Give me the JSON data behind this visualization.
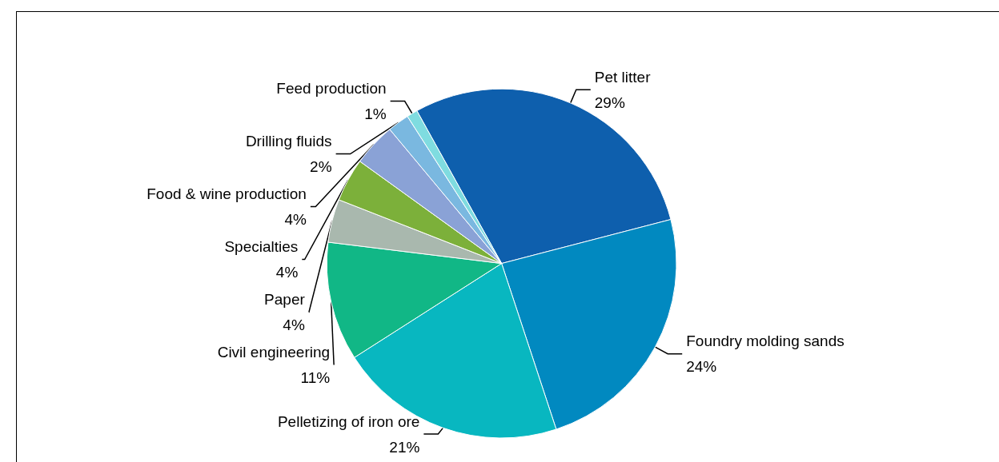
{
  "chart_data": {
    "type": "pie",
    "categories": [
      "Pet litter",
      "Foundry molding sands",
      "Pelletizing of iron ore",
      "Civil engineering",
      "Paper",
      "Specialties",
      "Food & wine production",
      "Drilling fluids",
      "Feed production"
    ],
    "values": [
      29,
      24,
      21,
      11,
      4,
      4,
      4,
      2,
      1
    ],
    "colors": [
      "#0e5fad",
      "#0189c0",
      "#08b7c0",
      "#11b786",
      "#a9b8ae",
      "#7cb03a",
      "#8aa2d6",
      "#7ab8e0",
      "#7fdce0"
    ],
    "value_labels": [
      "29%",
      "24%",
      "21%",
      "11%",
      "4%",
      "4%",
      "4%",
      "2%",
      "1%"
    ],
    "legend": false
  }
}
